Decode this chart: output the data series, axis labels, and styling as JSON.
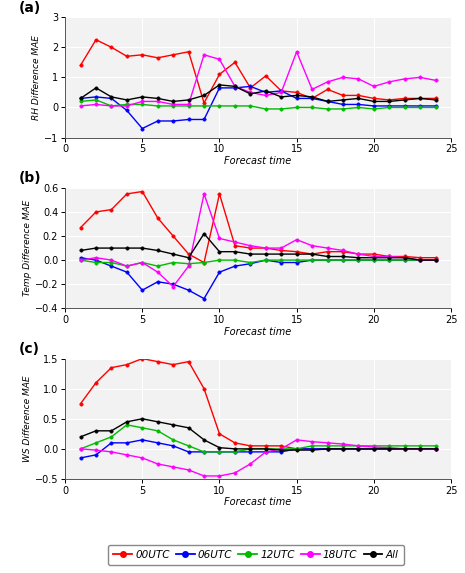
{
  "x": [
    1,
    2,
    3,
    4,
    5,
    6,
    7,
    8,
    9,
    10,
    11,
    12,
    13,
    14,
    15,
    16,
    17,
    18,
    19,
    20,
    21,
    22,
    23,
    24
  ],
  "panel_a": {
    "00UTC": [
      1.4,
      2.25,
      2.0,
      1.7,
      1.75,
      1.65,
      1.75,
      1.85,
      0.15,
      1.1,
      1.5,
      0.65,
      1.05,
      0.55,
      0.5,
      0.3,
      0.6,
      0.4,
      0.4,
      0.3,
      0.25,
      0.3,
      0.3,
      0.3
    ],
    "06UTC": [
      0.3,
      0.35,
      0.3,
      -0.1,
      -0.7,
      -0.45,
      -0.45,
      -0.4,
      -0.4,
      0.65,
      0.65,
      0.7,
      0.5,
      0.55,
      0.3,
      0.3,
      0.2,
      0.1,
      0.1,
      0.05,
      0.05,
      0.05,
      0.05,
      0.05
    ],
    "12UTC": [
      0.2,
      0.25,
      0.05,
      0.1,
      0.1,
      0.05,
      0.05,
      0.05,
      0.05,
      0.05,
      0.05,
      0.05,
      -0.05,
      -0.05,
      0.0,
      0.0,
      -0.05,
      -0.05,
      0.0,
      -0.05,
      0.0,
      0.0,
      0.0,
      0.0
    ],
    "18UTC": [
      0.05,
      0.1,
      0.05,
      0.05,
      0.2,
      0.2,
      0.1,
      0.1,
      1.75,
      1.6,
      0.7,
      0.5,
      0.4,
      0.5,
      1.85,
      0.6,
      0.85,
      1.0,
      0.95,
      0.7,
      0.85,
      0.95,
      1.0,
      0.9
    ],
    "All": [
      0.3,
      0.65,
      0.35,
      0.25,
      0.35,
      0.3,
      0.2,
      0.25,
      0.4,
      0.75,
      0.7,
      0.45,
      0.55,
      0.35,
      0.4,
      0.35,
      0.2,
      0.25,
      0.3,
      0.2,
      0.2,
      0.25,
      0.3,
      0.25
    ]
  },
  "panel_b": {
    "00UTC": [
      0.27,
      0.4,
      0.42,
      0.55,
      0.57,
      0.35,
      0.2,
      0.05,
      -0.02,
      0.55,
      0.12,
      0.1,
      0.1,
      0.08,
      0.07,
      0.05,
      0.07,
      0.07,
      0.05,
      0.05,
      0.03,
      0.03,
      0.02,
      0.02
    ],
    "06UTC": [
      0.02,
      0.0,
      -0.05,
      -0.1,
      -0.25,
      -0.18,
      -0.2,
      -0.25,
      -0.32,
      -0.1,
      -0.05,
      -0.03,
      0.0,
      -0.02,
      -0.02,
      0.0,
      0.0,
      0.0,
      0.0,
      0.0,
      0.0,
      0.0,
      0.0,
      0.0
    ],
    "12UTC": [
      0.0,
      -0.02,
      -0.02,
      -0.05,
      -0.02,
      -0.05,
      -0.02,
      -0.03,
      -0.02,
      0.0,
      0.0,
      -0.02,
      0.0,
      0.0,
      0.0,
      0.0,
      0.0,
      0.0,
      0.0,
      0.0,
      0.0,
      0.0,
      0.0,
      0.0
    ],
    "18UTC": [
      0.0,
      0.02,
      0.0,
      -0.05,
      -0.02,
      -0.1,
      -0.22,
      -0.05,
      0.55,
      0.18,
      0.15,
      0.12,
      0.1,
      0.1,
      0.17,
      0.12,
      0.1,
      0.08,
      0.05,
      0.03,
      0.03,
      0.02,
      0.0,
      0.0
    ],
    "All": [
      0.08,
      0.1,
      0.1,
      0.1,
      0.1,
      0.08,
      0.05,
      0.02,
      0.22,
      0.07,
      0.07,
      0.05,
      0.05,
      0.05,
      0.05,
      0.05,
      0.03,
      0.03,
      0.02,
      0.02,
      0.02,
      0.02,
      0.0,
      0.0
    ]
  },
  "panel_c": {
    "00UTC": [
      0.75,
      1.1,
      1.35,
      1.4,
      1.5,
      1.45,
      1.4,
      1.45,
      1.0,
      0.25,
      0.1,
      0.05,
      0.05,
      0.05,
      0.0,
      0.0,
      0.0,
      0.0,
      0.0,
      0.0,
      0.0,
      0.0,
      0.0,
      0.0
    ],
    "06UTC": [
      -0.15,
      -0.1,
      0.1,
      0.1,
      0.15,
      0.1,
      0.05,
      -0.05,
      -0.05,
      -0.05,
      -0.05,
      -0.05,
      -0.05,
      -0.05,
      0.0,
      0.0,
      0.0,
      0.0,
      0.0,
      0.0,
      0.0,
      0.0,
      0.0,
      0.0
    ],
    "12UTC": [
      0.0,
      0.1,
      0.2,
      0.4,
      0.35,
      0.3,
      0.15,
      0.05,
      -0.05,
      -0.05,
      -0.05,
      0.0,
      0.0,
      0.0,
      0.0,
      0.05,
      0.05,
      0.05,
      0.05,
      0.05,
      0.05,
      0.05,
      0.05,
      0.05
    ],
    "18UTC": [
      0.0,
      -0.02,
      -0.05,
      -0.1,
      -0.15,
      -0.25,
      -0.3,
      -0.35,
      -0.45,
      -0.45,
      -0.4,
      -0.25,
      -0.05,
      0.0,
      0.15,
      0.12,
      0.1,
      0.08,
      0.05,
      0.03,
      0.02,
      0.0,
      0.0,
      0.0
    ],
    "All": [
      0.2,
      0.3,
      0.3,
      0.45,
      0.5,
      0.45,
      0.4,
      0.35,
      0.15,
      0.02,
      0.0,
      0.0,
      0.0,
      -0.02,
      -0.02,
      -0.02,
      0.0,
      0.0,
      0.0,
      0.0,
      0.0,
      0.0,
      0.0,
      0.0
    ]
  },
  "colors": {
    "00UTC": "#FF0000",
    "06UTC": "#0000FF",
    "12UTC": "#00BB00",
    "18UTC": "#FF00FF",
    "All": "#000000"
  },
  "ylabel_a": "RH Difference MAE",
  "ylabel_b": "Temp Difference MAE",
  "ylabel_c": "WS Difference MAE",
  "xlabel": "Forecast time",
  "ylim_a": [
    -1,
    3
  ],
  "ylim_b": [
    -0.4,
    0.6
  ],
  "ylim_c": [
    -0.5,
    1.5
  ],
  "yticks_a": [
    -1,
    0,
    1,
    2,
    3
  ],
  "yticks_b": [
    -0.4,
    -0.2,
    0.0,
    0.2,
    0.4,
    0.6
  ],
  "yticks_c": [
    -0.5,
    0.0,
    0.5,
    1.0,
    1.5
  ],
  "xticks": [
    0,
    5,
    10,
    15,
    20,
    25
  ],
  "xlim": [
    0,
    25
  ],
  "bg_color": "#FFFFFF",
  "plot_bg": "#F2F2F2",
  "grid_color": "#FFFFFF",
  "series_keys": [
    "00UTC",
    "06UTC",
    "12UTC",
    "18UTC",
    "All"
  ],
  "panel_labels": [
    "(a)",
    "(b)",
    "(c)"
  ],
  "linewidth": 1.0,
  "markersize": 2.5
}
